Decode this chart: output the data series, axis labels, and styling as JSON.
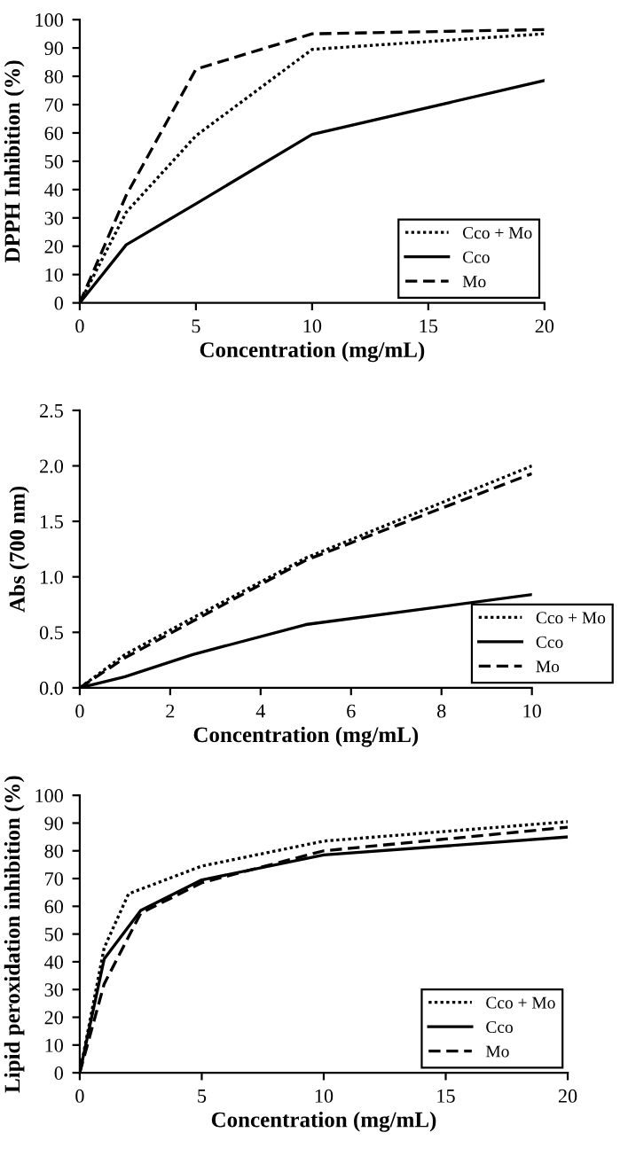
{
  "chart_data": [
    {
      "type": "line",
      "xlabel": "Concentration (mg/mL)",
      "ylabel": "DPPH Inhibition (%)",
      "xlim": [
        0,
        20
      ],
      "xticks": [
        0,
        5,
        10,
        15,
        20
      ],
      "ylim": [
        0,
        100
      ],
      "yticks": [
        0,
        10,
        20,
        30,
        40,
        50,
        60,
        70,
        80,
        90,
        100
      ],
      "grid": false,
      "legend": "bottom right",
      "marker": "none",
      "series": [
        {
          "name": "Cco + Mo",
          "color": "#000000",
          "line_style": "dotted",
          "x": [
            0,
            2,
            5,
            10,
            20
          ],
          "values": [
            0,
            32,
            59,
            89.5,
            95
          ]
        },
        {
          "name": "Cco",
          "color": "#000000",
          "line_style": "solid",
          "x": [
            0,
            2,
            5,
            10,
            20
          ],
          "values": [
            0,
            20.5,
            35,
            59.5,
            78.5
          ]
        },
        {
          "name": "Mo",
          "color": "#000000",
          "line_style": "dashed",
          "x": [
            0,
            2,
            5,
            10,
            20
          ],
          "values": [
            0,
            38,
            82.5,
            95,
            96.5
          ]
        }
      ]
    },
    {
      "type": "line",
      "xlabel": "Concentration (mg/mL)",
      "ylabel": "Abs (700 nm)",
      "xlim": [
        0,
        10
      ],
      "xticks": [
        0,
        2,
        4,
        6,
        8,
        10
      ],
      "ylim": [
        0,
        2.5
      ],
      "yticks": [
        {
          "value": 0,
          "label": "0.0"
        },
        {
          "value": 0.5,
          "label": "0.5"
        },
        {
          "value": 1,
          "label": "1.0"
        },
        {
          "value": 1.5,
          "label": "1.5"
        },
        {
          "value": 2,
          "label": "2.0"
        },
        {
          "value": 2.5,
          "label": "2.5"
        }
      ],
      "grid": false,
      "legend": "bottom right",
      "marker": "none",
      "series": [
        {
          "name": "Cco + Mo",
          "color": "#000000",
          "line_style": "dotted",
          "x": [
            0,
            1,
            2.5,
            5,
            10
          ],
          "values": [
            0,
            0.3,
            0.63,
            1.17,
            2.0
          ]
        },
        {
          "name": "Cco",
          "color": "#000000",
          "line_style": "solid",
          "x": [
            0,
            1,
            2.5,
            5,
            10
          ],
          "values": [
            0,
            0.1,
            0.3,
            0.57,
            0.84
          ]
        },
        {
          "name": "Mo",
          "color": "#000000",
          "line_style": "dashed",
          "x": [
            0,
            1,
            2.5,
            5,
            10
          ],
          "values": [
            0,
            0.27,
            0.6,
            1.15,
            1.93
          ]
        }
      ]
    },
    {
      "type": "line",
      "xlabel": "Concentration (mg/mL)",
      "ylabel": "Lipid peroxidation inhibition (%)",
      "xlim": [
        0,
        20
      ],
      "xticks": [
        0,
        5,
        10,
        15,
        20
      ],
      "ylim": [
        0,
        100
      ],
      "yticks": [
        0,
        10,
        20,
        30,
        40,
        50,
        60,
        70,
        80,
        90,
        100
      ],
      "grid": false,
      "legend": "bottom right",
      "marker": "none",
      "series": [
        {
          "name": "Cco + Mo",
          "color": "#000000",
          "line_style": "dotted",
          "x": [
            0,
            1,
            2,
            5,
            10,
            20
          ],
          "values": [
            0,
            45,
            64.5,
            74.5,
            83.5,
            90.5
          ]
        },
        {
          "name": "Cco",
          "color": "#000000",
          "line_style": "solid",
          "x": [
            0,
            1,
            2.5,
            5,
            10,
            20
          ],
          "values": [
            0,
            41,
            58.5,
            69.5,
            78.5,
            85
          ]
        },
        {
          "name": "Mo",
          "color": "#000000",
          "line_style": "dashed",
          "x": [
            0,
            1,
            2.5,
            5,
            10,
            20
          ],
          "values": [
            0,
            32,
            57.5,
            68.5,
            80,
            88.5
          ]
        }
      ]
    }
  ]
}
